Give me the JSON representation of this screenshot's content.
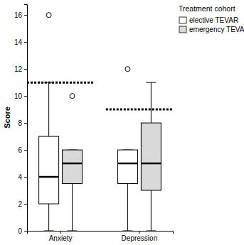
{
  "chart_data": {
    "type": "box",
    "y_label": "Score",
    "legend_title": "Treatment cohort",
    "legend": "top-right",
    "categories": [
      "Anxiety",
      "Depression"
    ],
    "ylim": [
      0,
      16.8
    ],
    "yticks": [
      0,
      2,
      4,
      6,
      8,
      10,
      12,
      14,
      16
    ],
    "cutoffs": [
      11,
      9
    ],
    "series": [
      {
        "name": "elective TEVAR",
        "color": "#ffffff",
        "values": [
          {
            "min": 0,
            "q1": 2,
            "median": 4,
            "q3": 7,
            "max": 11,
            "outliers": [
              16
            ]
          },
          {
            "min": 0,
            "q1": 3.5,
            "median": 5,
            "q3": 6,
            "max": 6,
            "outliers": [
              12
            ]
          }
        ]
      },
      {
        "name": "emergency TEVAR",
        "color": "#d9d9d9",
        "values": [
          {
            "min": 0,
            "q1": 3.5,
            "median": 5,
            "q3": 6,
            "max": 6,
            "outliers": [
              10
            ]
          },
          {
            "min": 0,
            "q1": 3,
            "median": 5,
            "q3": 8,
            "max": 11,
            "outliers": []
          }
        ]
      }
    ]
  }
}
